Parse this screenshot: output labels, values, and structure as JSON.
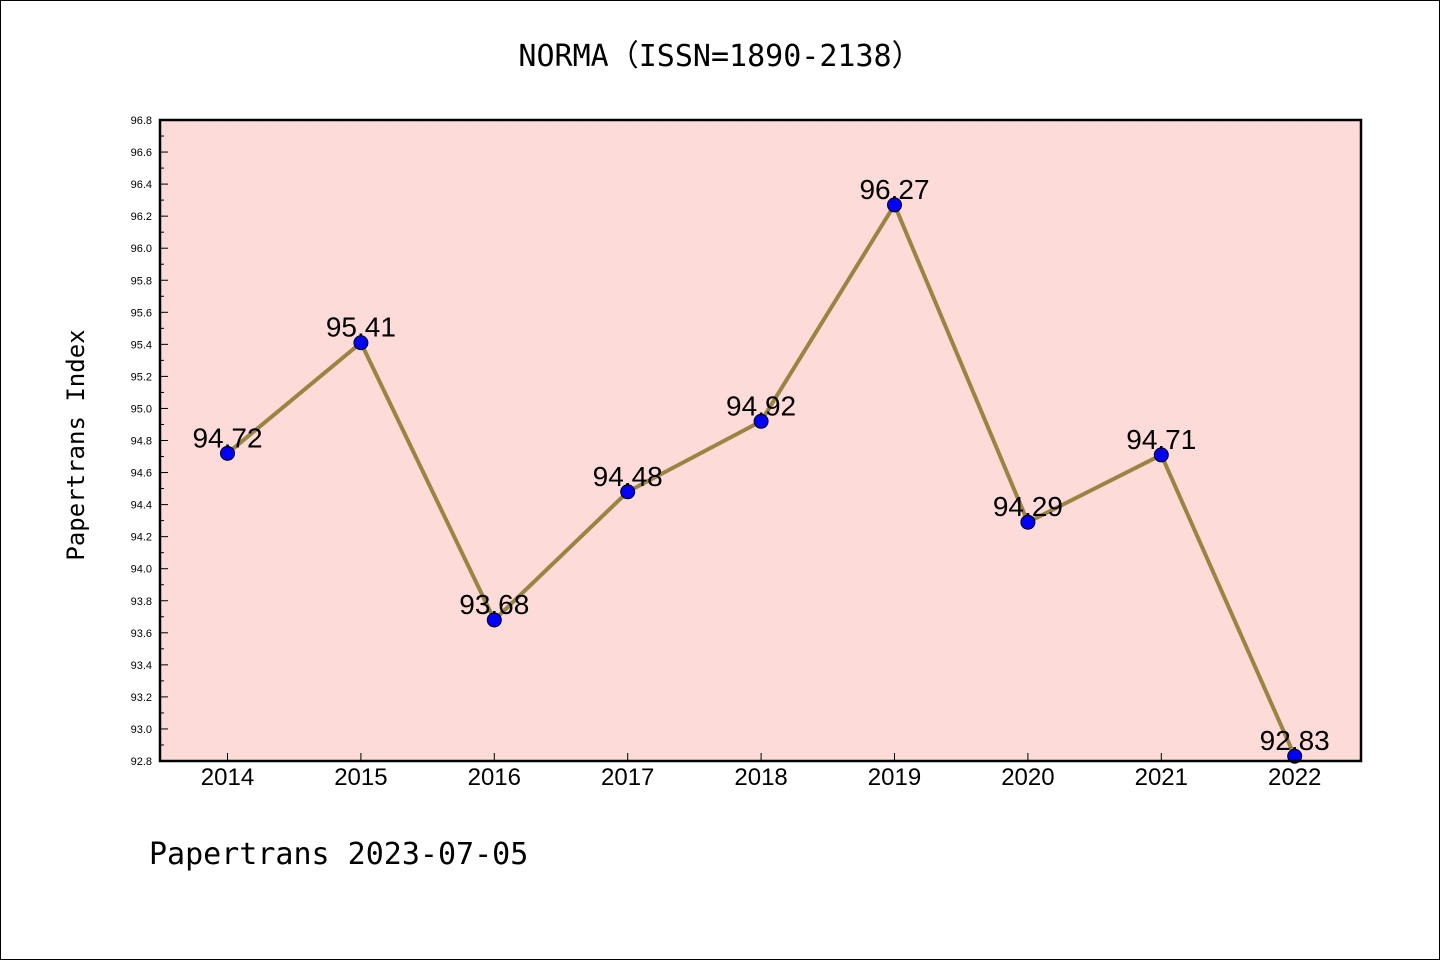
{
  "chart_data": {
    "type": "line",
    "title": "NORMA（ISSN=1890-2138）",
    "ylabel": "Papertrans Index",
    "xlabel": "",
    "footer": "Papertrans 2023-07-05",
    "categories": [
      "2014",
      "2015",
      "2016",
      "2017",
      "2018",
      "2019",
      "2020",
      "2021",
      "2022"
    ],
    "series": [
      {
        "values": [
          94.72,
          95.41,
          93.68,
          94.48,
          94.92,
          96.27,
          94.29,
          94.71,
          92.83
        ]
      }
    ],
    "data_labels": [
      "94.72",
      "95.41",
      "93.68",
      "94.48",
      "94.92",
      "96.27",
      "94.29",
      "94.71",
      "92.83"
    ],
    "ylim": [
      92.8,
      96.8
    ],
    "yticks": [
      "92.8",
      "93.0",
      "93.2",
      "93.4",
      "93.6",
      "93.8",
      "94.0",
      "94.2",
      "94.4",
      "94.6",
      "94.8",
      "95.0",
      "95.2",
      "95.4",
      "95.6",
      "95.8",
      "96.0",
      "96.2",
      "96.4",
      "96.6",
      "96.8"
    ],
    "grid": false,
    "legend": "none",
    "colors": {
      "plot_background": "#fddbd8",
      "line": "#9a8540",
      "marker": "#0000ff"
    }
  }
}
